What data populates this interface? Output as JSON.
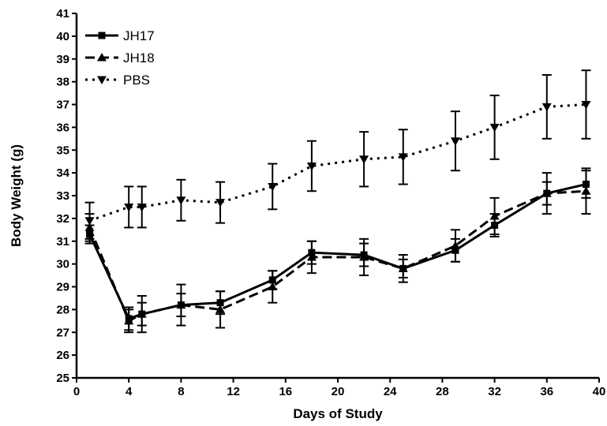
{
  "chart_data": {
    "type": "line",
    "title": "",
    "xlabel": "Days of Study",
    "ylabel": "Body Weight (g)",
    "xlim": [
      0,
      40
    ],
    "ylim": [
      25,
      41
    ],
    "x_ticks": [
      0,
      4,
      8,
      12,
      16,
      20,
      24,
      28,
      32,
      36,
      40
    ],
    "y_ticks": [
      25,
      26,
      27,
      28,
      29,
      30,
      31,
      32,
      33,
      34,
      35,
      36,
      37,
      38,
      39,
      40,
      41
    ],
    "grid": false,
    "legend_position": "top-left",
    "series": [
      {
        "name": "JH17",
        "marker": "square",
        "line_style": "solid",
        "color": "#000000",
        "x": [
          1,
          4,
          5,
          8,
          11,
          15,
          18,
          22,
          25,
          29,
          32,
          36,
          39
        ],
        "y": [
          31.3,
          27.6,
          27.8,
          28.2,
          28.3,
          29.3,
          30.5,
          30.4,
          29.8,
          30.6,
          31.7,
          33.1,
          33.5
        ],
        "error": [
          0.4,
          0.5,
          0.5,
          0.5,
          0.5,
          0.4,
          0.5,
          0.5,
          0.4,
          0.5,
          0.5,
          0.5,
          0.6
        ]
      },
      {
        "name": "JH18",
        "marker": "triangle-up",
        "line_style": "dashed",
        "color": "#000000",
        "x": [
          1,
          4,
          5,
          8,
          11,
          15,
          18,
          22,
          25,
          29,
          32,
          36,
          39
        ],
        "y": [
          31.6,
          27.5,
          27.8,
          28.2,
          28.0,
          29.0,
          30.3,
          30.3,
          29.8,
          30.8,
          32.1,
          33.1,
          33.2
        ],
        "error": [
          0.6,
          0.5,
          0.8,
          0.9,
          0.8,
          0.7,
          0.7,
          0.8,
          0.6,
          0.7,
          0.8,
          0.9,
          1.0
        ]
      },
      {
        "name": "PBS",
        "marker": "triangle-down",
        "line_style": "dotted",
        "color": "#000000",
        "x": [
          1,
          4,
          5,
          8,
          11,
          15,
          18,
          22,
          25,
          29,
          32,
          36,
          39
        ],
        "y": [
          31.9,
          32.5,
          32.5,
          32.8,
          32.7,
          33.4,
          34.3,
          34.6,
          34.7,
          35.4,
          36.0,
          36.9,
          37.0
        ],
        "error": [
          0.8,
          0.9,
          0.9,
          0.9,
          0.9,
          1.0,
          1.1,
          1.2,
          1.2,
          1.3,
          1.4,
          1.4,
          1.5
        ]
      }
    ]
  }
}
